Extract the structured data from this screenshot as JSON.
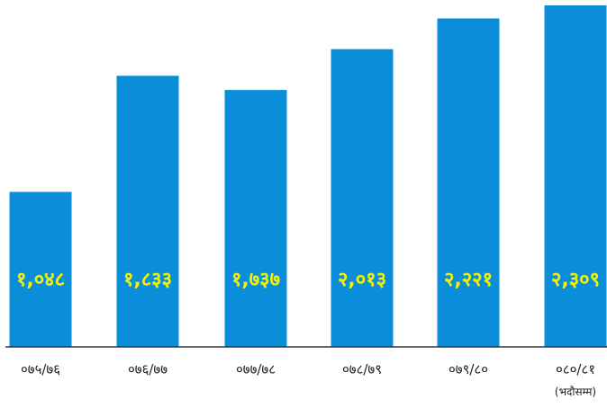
{
  "chart_data": {
    "type": "bar",
    "categories": [
      "०७५/७६",
      "०७६/७७",
      "०७७/७८",
      "०७८/७९",
      "०७९/८०",
      "०८०/८१"
    ],
    "values": [
      1048,
      1833,
      1737,
      2013,
      2221,
      2309
    ],
    "value_labels": [
      "१,०४८",
      "१,८३३",
      "१,७३७",
      "२,०१३",
      "२,२२१",
      "२,३०९"
    ],
    "category_notes": [
      "",
      "",
      "",
      "",
      "",
      "(भदौसम्म)"
    ],
    "ylim": [
      0,
      2309
    ],
    "grid": false,
    "legend": "none",
    "colors": {
      "bar": "#0a8ed9",
      "value_label": "#f3f300",
      "axis": "#333333"
    }
  }
}
